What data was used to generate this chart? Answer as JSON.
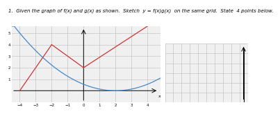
{
  "title_part1": "1.  Given the graph of f(x) and g(x) as shown. Sketch ",
  "title_italic": "y = f(x)g(x)",
  "title_part2": " on the same grid.  State ",
  "title_bold": "4 points below.",
  "main_graph": {
    "xlim": [
      -4.5,
      4.8
    ],
    "ylim": [
      -1.0,
      5.6
    ],
    "xticks": [
      -4,
      -3,
      -2,
      -1,
      0,
      1,
      2,
      3,
      4
    ],
    "yticks": [
      1,
      2,
      3,
      4,
      5
    ],
    "f_color": "#cc3333",
    "g_color": "#4488cc",
    "grid_color": "#bbbbbb",
    "bg_color": "#f0f0f0"
  },
  "small_grid": {
    "ncols": 10,
    "nrows": 6,
    "grid_color": "#bbbbbb",
    "bg_color": "#f0f0f0"
  }
}
